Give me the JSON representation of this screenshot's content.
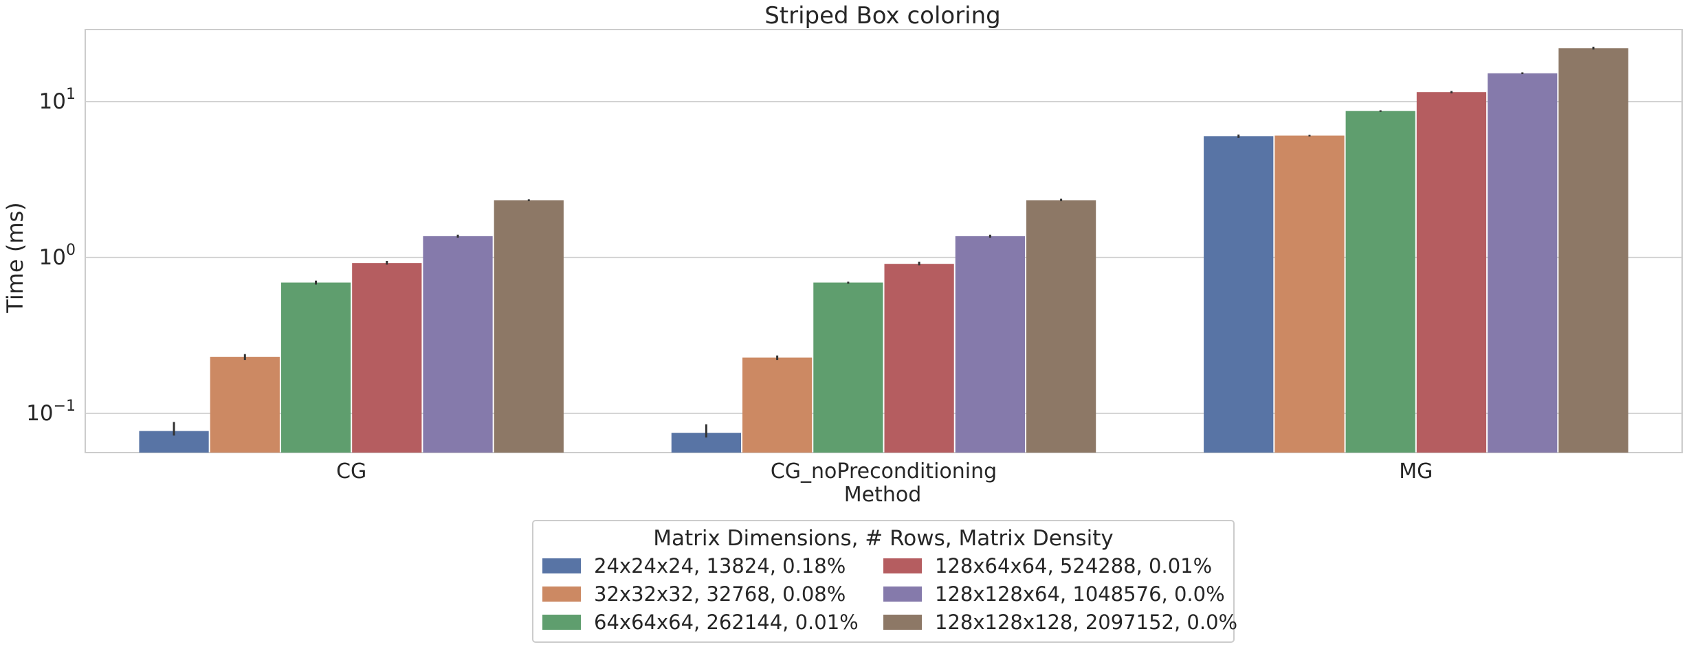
{
  "chart_data": {
    "type": "bar",
    "title": "Striped Box coloring",
    "xlabel": "Method",
    "ylabel": "Time (ms)",
    "yscale": "log",
    "ylim": [
      0.056,
      29
    ],
    "grid": true,
    "categories": [
      "CG",
      "CG_noPreconditioning",
      "MG"
    ],
    "yticks": [
      {
        "value": 0.1,
        "base": "10",
        "exp": "−1"
      },
      {
        "value": 1,
        "base": "10",
        "exp": "0"
      },
      {
        "value": 10,
        "base": "10",
        "exp": "1"
      }
    ],
    "legend": {
      "title": "Matrix Dimensions, # Rows, Matrix Density",
      "placement": "bottom-center",
      "columns": 2
    },
    "series": [
      {
        "name": "24x24x24, 13824, 0.18%",
        "color": "#5874a5",
        "values": [
          0.077,
          0.075,
          6.0
        ],
        "err_high": [
          0.088,
          0.085,
          6.15
        ],
        "err_low": [
          0.072,
          0.07,
          5.85
        ]
      },
      {
        "name": "32x32x32, 32768, 0.08%",
        "color": "#cc8963",
        "values": [
          0.23,
          0.228,
          6.05
        ],
        "err_high": [
          0.24,
          0.235,
          6.12
        ],
        "err_low": [
          0.22,
          0.22,
          5.98
        ]
      },
      {
        "name": "64x64x64, 262144, 0.01%",
        "color": "#5f9e6e",
        "values": [
          0.69,
          0.69,
          8.7
        ],
        "err_high": [
          0.71,
          0.7,
          8.8
        ],
        "err_low": [
          0.67,
          0.68,
          8.6
        ]
      },
      {
        "name": "128x64x64, 524288, 0.01%",
        "color": "#b55d60",
        "values": [
          0.92,
          0.91,
          11.5
        ],
        "err_high": [
          0.95,
          0.94,
          11.7
        ],
        "err_low": [
          0.9,
          0.89,
          11.3
        ]
      },
      {
        "name": "128x128x64, 1048576, 0.0%",
        "color": "#857aab",
        "values": [
          1.37,
          1.37,
          15.2
        ],
        "err_high": [
          1.4,
          1.4,
          15.4
        ],
        "err_low": [
          1.34,
          1.34,
          15.0
        ]
      },
      {
        "name": "128x128x128, 2097152, 0.0%",
        "color": "#8d7866",
        "values": [
          2.33,
          2.33,
          22.0
        ],
        "err_high": [
          2.36,
          2.38,
          22.5
        ],
        "err_low": [
          2.3,
          2.3,
          21.6
        ]
      }
    ]
  }
}
